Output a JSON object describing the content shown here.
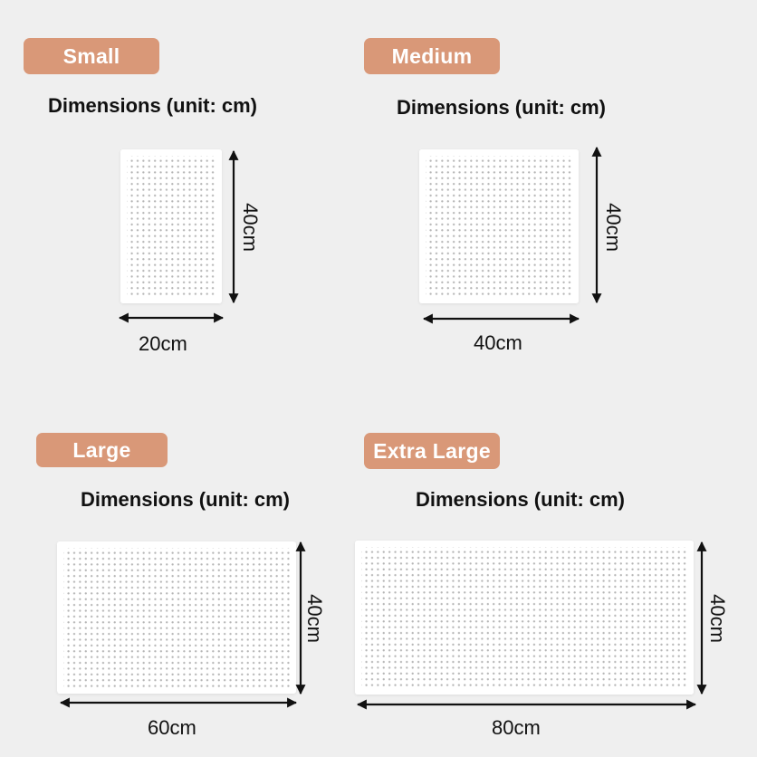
{
  "sizes": {
    "small": {
      "label": "Small",
      "heading": "Dimensions (unit: cm)",
      "width": "20cm",
      "height": "40cm"
    },
    "medium": {
      "label": "Medium",
      "heading": "Dimensions (unit: cm)",
      "width": "40cm",
      "height": "40cm"
    },
    "large": {
      "label": "Large",
      "heading": "Dimensions (unit: cm)",
      "width": "60cm",
      "height": "40cm"
    },
    "extra_large": {
      "label": "Extra Large",
      "heading": "Dimensions (unit: cm)",
      "width": "80cm",
      "height": "40cm"
    }
  },
  "colors": {
    "badge": "#d99878",
    "background": "#efefef",
    "board": "#ffffff"
  }
}
